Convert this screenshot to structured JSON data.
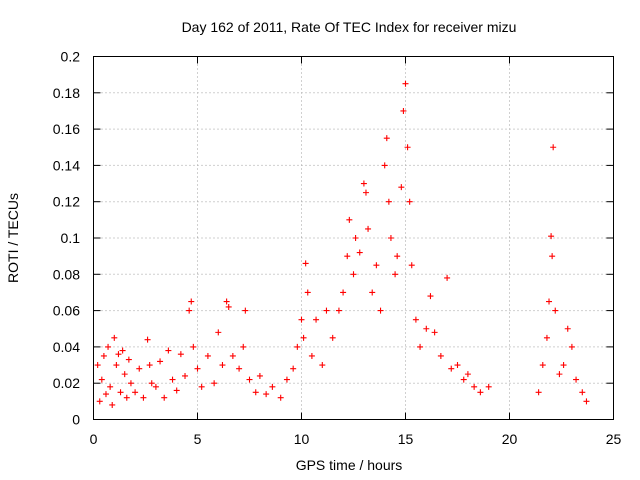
{
  "chart_data": {
    "type": "scatter",
    "title": "Day 162 of 2011, Rate Of TEC Index for receiver mizu",
    "xlabel": "GPS time / hours",
    "ylabel": "ROTI / TECUs",
    "xlim": [
      0,
      25
    ],
    "ylim": [
      0,
      0.2
    ],
    "xticks": [
      0,
      5,
      10,
      15,
      20,
      25
    ],
    "xtick_labels": [
      "0",
      "5",
      "10",
      "15",
      "20",
      "25"
    ],
    "yticks": [
      0,
      0.02,
      0.04,
      0.06,
      0.08,
      0.1,
      0.12,
      0.14,
      0.16,
      0.18,
      0.2
    ],
    "ytick_labels": [
      "0",
      "0.02",
      "0.04",
      "0.06",
      "0.08",
      "0.1",
      "0.12",
      "0.14",
      "0.16",
      "0.18",
      "0.2"
    ],
    "grid": true,
    "marker": "+",
    "color": "#ff0000",
    "series": [
      {
        "name": "ROTI",
        "points": [
          [
            0.2,
            0.03
          ],
          [
            0.3,
            0.01
          ],
          [
            0.4,
            0.022
          ],
          [
            0.5,
            0.035
          ],
          [
            0.6,
            0.014
          ],
          [
            0.7,
            0.04
          ],
          [
            0.8,
            0.018
          ],
          [
            0.9,
            0.008
          ],
          [
            1.0,
            0.045
          ],
          [
            1.1,
            0.03
          ],
          [
            1.2,
            0.036
          ],
          [
            1.3,
            0.015
          ],
          [
            1.4,
            0.038
          ],
          [
            1.5,
            0.025
          ],
          [
            1.6,
            0.012
          ],
          [
            1.7,
            0.033
          ],
          [
            1.8,
            0.02
          ],
          [
            2.0,
            0.015
          ],
          [
            2.2,
            0.028
          ],
          [
            2.4,
            0.012
          ],
          [
            2.6,
            0.044
          ],
          [
            2.7,
            0.03
          ],
          [
            2.8,
            0.02
          ],
          [
            3.0,
            0.018
          ],
          [
            3.2,
            0.032
          ],
          [
            3.4,
            0.012
          ],
          [
            3.6,
            0.038
          ],
          [
            3.8,
            0.022
          ],
          [
            4.0,
            0.016
          ],
          [
            4.2,
            0.036
          ],
          [
            4.4,
            0.024
          ],
          [
            4.6,
            0.06
          ],
          [
            4.7,
            0.065
          ],
          [
            4.8,
            0.04
          ],
          [
            5.0,
            0.028
          ],
          [
            5.2,
            0.018
          ],
          [
            5.5,
            0.035
          ],
          [
            5.8,
            0.02
          ],
          [
            6.0,
            0.048
          ],
          [
            6.2,
            0.03
          ],
          [
            6.4,
            0.065
          ],
          [
            6.5,
            0.062
          ],
          [
            6.7,
            0.035
          ],
          [
            7.0,
            0.028
          ],
          [
            7.2,
            0.04
          ],
          [
            7.3,
            0.06
          ],
          [
            7.5,
            0.022
          ],
          [
            7.8,
            0.015
          ],
          [
            8.0,
            0.024
          ],
          [
            8.3,
            0.014
          ],
          [
            8.6,
            0.018
          ],
          [
            9.0,
            0.012
          ],
          [
            9.3,
            0.022
          ],
          [
            9.6,
            0.028
          ],
          [
            9.8,
            0.04
          ],
          [
            10.0,
            0.055
          ],
          [
            10.1,
            0.045
          ],
          [
            10.2,
            0.086
          ],
          [
            10.3,
            0.07
          ],
          [
            10.5,
            0.035
          ],
          [
            10.7,
            0.055
          ],
          [
            11.0,
            0.03
          ],
          [
            11.2,
            0.06
          ],
          [
            11.5,
            0.045
          ],
          [
            11.8,
            0.06
          ],
          [
            12.0,
            0.07
          ],
          [
            12.2,
            0.09
          ],
          [
            12.3,
            0.11
          ],
          [
            12.5,
            0.08
          ],
          [
            12.6,
            0.1
          ],
          [
            12.8,
            0.092
          ],
          [
            13.0,
            0.13
          ],
          [
            13.1,
            0.125
          ],
          [
            13.2,
            0.105
          ],
          [
            13.4,
            0.07
          ],
          [
            13.6,
            0.085
          ],
          [
            13.8,
            0.06
          ],
          [
            14.0,
            0.14
          ],
          [
            14.1,
            0.155
          ],
          [
            14.2,
            0.12
          ],
          [
            14.3,
            0.1
          ],
          [
            14.5,
            0.08
          ],
          [
            14.6,
            0.09
          ],
          [
            14.8,
            0.128
          ],
          [
            14.9,
            0.17
          ],
          [
            15.0,
            0.185
          ],
          [
            15.1,
            0.15
          ],
          [
            15.2,
            0.12
          ],
          [
            15.3,
            0.085
          ],
          [
            15.5,
            0.055
          ],
          [
            15.7,
            0.04
          ],
          [
            16.0,
            0.05
          ],
          [
            16.2,
            0.068
          ],
          [
            16.4,
            0.048
          ],
          [
            16.7,
            0.035
          ],
          [
            17.0,
            0.078
          ],
          [
            17.2,
            0.028
          ],
          [
            17.5,
            0.03
          ],
          [
            17.8,
            0.022
          ],
          [
            18.0,
            0.025
          ],
          [
            18.3,
            0.018
          ],
          [
            18.6,
            0.015
          ],
          [
            19.0,
            0.018
          ],
          [
            21.4,
            0.015
          ],
          [
            21.6,
            0.03
          ],
          [
            21.8,
            0.045
          ],
          [
            21.9,
            0.065
          ],
          [
            22.0,
            0.101
          ],
          [
            22.05,
            0.09
          ],
          [
            22.1,
            0.15
          ],
          [
            22.2,
            0.06
          ],
          [
            22.4,
            0.025
          ],
          [
            22.6,
            0.03
          ],
          [
            22.8,
            0.05
          ],
          [
            23.0,
            0.04
          ],
          [
            23.2,
            0.022
          ],
          [
            23.5,
            0.015
          ],
          [
            23.7,
            0.01
          ]
        ]
      }
    ]
  }
}
